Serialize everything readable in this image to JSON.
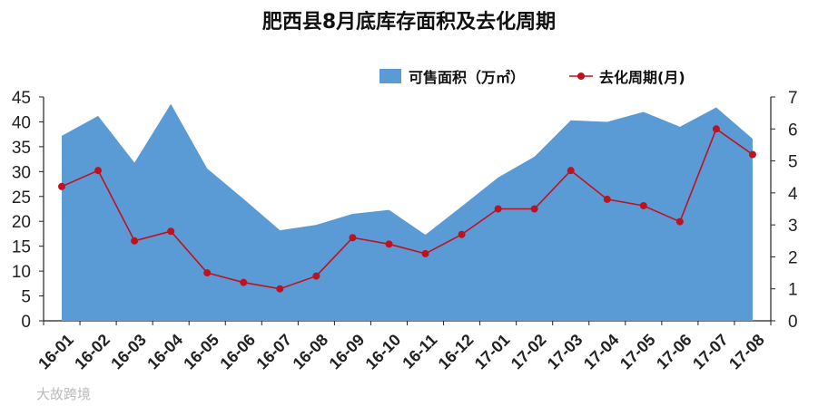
{
  "chart_data": {
    "type": "area+line",
    "title": "肥西县8月底库存面积及去化周期",
    "categories": [
      "16-01",
      "16-02",
      "16-03",
      "16-04",
      "16-05",
      "16-06",
      "16-07",
      "16-08",
      "16-09",
      "16-10",
      "16-11",
      "16-12",
      "17-01",
      "17-02",
      "17-03",
      "17-04",
      "17-05",
      "17-06",
      "17-07",
      "17-08"
    ],
    "series": [
      {
        "name": "可售面积（万㎡）",
        "type": "area",
        "axis": "left",
        "color": "#5b9bd5",
        "values": [
          37.2,
          41.2,
          31.8,
          43.6,
          30.6,
          24.5,
          18.2,
          19.3,
          21.5,
          22.3,
          17.3,
          23.0,
          28.8,
          33.0,
          40.3,
          40.0,
          42.0,
          39.0,
          42.9,
          36.6
        ]
      },
      {
        "name": "去化周期(月)",
        "type": "line",
        "axis": "right",
        "color": "#c0121e",
        "values": [
          4.2,
          4.7,
          2.5,
          2.8,
          1.5,
          1.2,
          1.0,
          1.4,
          2.6,
          2.4,
          2.1,
          2.7,
          3.5,
          3.5,
          4.7,
          3.8,
          3.6,
          3.1,
          6.0,
          5.2
        ]
      }
    ],
    "y_left": {
      "min": 0,
      "max": 45,
      "step": 5
    },
    "y_right": {
      "min": 0,
      "max": 7,
      "step": 1
    },
    "legend_position": "top-right",
    "grid": false
  },
  "watermark": "大故跨境"
}
